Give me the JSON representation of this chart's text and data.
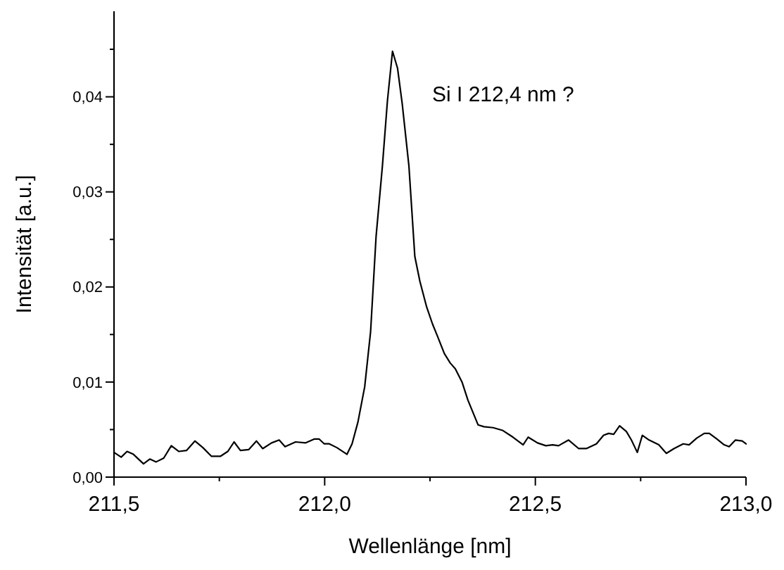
{
  "chart_data": {
    "type": "line",
    "xlabel": "Wellenlänge [nm]",
    "ylabel": "Intensität [a.u.]",
    "annotations": [
      "Si I 212,4 nm ?"
    ],
    "xlim": [
      211.5,
      213.0
    ],
    "xticks": [
      {
        "value": 211.5,
        "label": "211,5"
      },
      {
        "value": 211.75,
        "label": null
      },
      {
        "value": 212.0,
        "label": "212,0"
      },
      {
        "value": 212.25,
        "label": null
      },
      {
        "value": 212.5,
        "label": "212,5"
      },
      {
        "value": 212.75,
        "label": null
      },
      {
        "value": 213.0,
        "label": "213,0"
      }
    ],
    "ylim": [
      0,
      0.049
    ],
    "yticks": [
      {
        "value": 0,
        "label": "0,00"
      },
      {
        "value": 0.005,
        "label": null
      },
      {
        "value": 0.01,
        "label": "0,01"
      },
      {
        "value": 0.015,
        "label": null
      },
      {
        "value": 0.02,
        "label": "0,02"
      },
      {
        "value": 0.025,
        "label": null
      },
      {
        "value": 0.03,
        "label": "0,03"
      },
      {
        "value": 0.035,
        "label": null
      },
      {
        "value": 0.04,
        "label": "0,04"
      },
      {
        "value": 0.045,
        "label": null
      }
    ],
    "grid": false,
    "marker": "none",
    "line_style": "solid",
    "series": [
      {
        "color": "#000000",
        "x": [
          211.5,
          211.517,
          211.531,
          211.546,
          211.57,
          211.585,
          211.6,
          211.618,
          211.636,
          211.654,
          211.672,
          211.692,
          211.711,
          211.731,
          211.753,
          211.77,
          211.785,
          211.8,
          211.82,
          211.838,
          211.853,
          211.874,
          211.892,
          211.906,
          211.931,
          211.955,
          211.975,
          211.987,
          211.999,
          212.011,
          212.029,
          212.053,
          212.065,
          212.079,
          212.095,
          212.109,
          212.122,
          212.137,
          212.149,
          212.161,
          212.173,
          212.184,
          212.2,
          212.214,
          212.226,
          212.242,
          212.256,
          212.268,
          212.284,
          212.298,
          212.31,
          212.326,
          212.34,
          212.364,
          212.378,
          212.4,
          212.423,
          212.447,
          212.471,
          212.483,
          212.505,
          212.525,
          212.541,
          212.555,
          212.579,
          212.603,
          212.621,
          212.645,
          212.662,
          212.674,
          212.686,
          212.7,
          212.716,
          212.728,
          212.742,
          212.754,
          212.77,
          212.793,
          212.811,
          212.829,
          212.851,
          212.865,
          212.883,
          212.901,
          212.913,
          212.931,
          212.948,
          212.96,
          212.975,
          212.991,
          213.0
        ],
        "values": [
          0.0026,
          0.0021,
          0.0027,
          0.0024,
          0.0014,
          0.0019,
          0.0016,
          0.002,
          0.0033,
          0.0027,
          0.0028,
          0.0038,
          0.0031,
          0.0022,
          0.0022,
          0.0027,
          0.0037,
          0.0028,
          0.0029,
          0.0038,
          0.003,
          0.0036,
          0.0039,
          0.0032,
          0.0037,
          0.0036,
          0.004,
          0.004,
          0.0035,
          0.0035,
          0.0031,
          0.0024,
          0.0035,
          0.0058,
          0.0095,
          0.0153,
          0.0253,
          0.0327,
          0.0396,
          0.0448,
          0.043,
          0.0393,
          0.0327,
          0.0232,
          0.0206,
          0.0179,
          0.0161,
          0.0148,
          0.013,
          0.012,
          0.0114,
          0.01,
          0.0081,
          0.0055,
          0.0053,
          0.0052,
          0.0049,
          0.0042,
          0.0034,
          0.0042,
          0.0036,
          0.0033,
          0.0034,
          0.0033,
          0.0039,
          0.003,
          0.003,
          0.0035,
          0.0044,
          0.0046,
          0.0045,
          0.0054,
          0.0048,
          0.0039,
          0.0026,
          0.0044,
          0.0039,
          0.0034,
          0.0025,
          0.003,
          0.0035,
          0.0034,
          0.0041,
          0.0046,
          0.0046,
          0.004,
          0.0034,
          0.0032,
          0.0039,
          0.0038,
          0.0035
        ]
      }
    ]
  }
}
